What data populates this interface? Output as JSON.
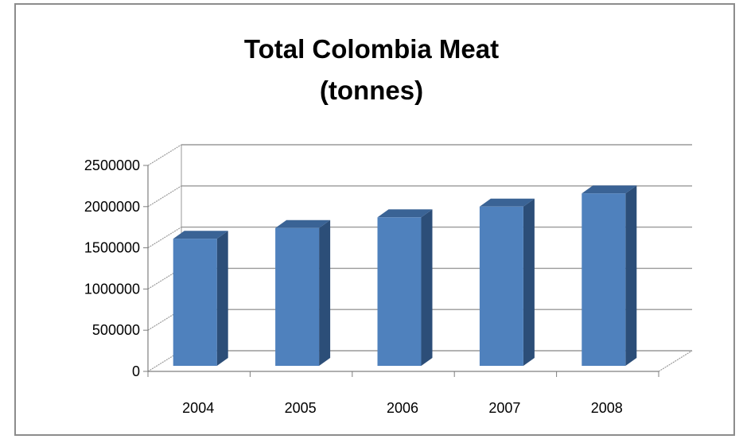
{
  "chart_data": {
    "type": "bar",
    "style": "3d-column",
    "title_lines": [
      "Total Colombia Meat",
      "(tonnes)"
    ],
    "categories": [
      "2004",
      "2005",
      "2006",
      "2007",
      "2008"
    ],
    "values": [
      1610000,
      1740000,
      1870000,
      2000000,
      2160000
    ],
    "ylim": [
      0,
      2500000
    ],
    "yticks": [
      "0",
      "500000",
      "1000000",
      "1500000",
      "2000000",
      "2500000"
    ],
    "grid": true,
    "legend": "none",
    "colors": {
      "front": "#4f81bd",
      "side": "#2c4e78",
      "top": "#3a6395",
      "grid": "#9a9a9a",
      "axis": "#7f7f7f"
    }
  }
}
